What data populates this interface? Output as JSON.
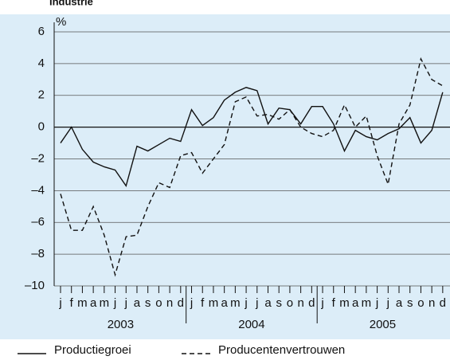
{
  "chart_data": {
    "type": "line",
    "title": "Industrie",
    "y_label": "%",
    "categories": [
      "j",
      "f",
      "m",
      "a",
      "m",
      "j",
      "j",
      "a",
      "s",
      "o",
      "n",
      "d",
      "j",
      "f",
      "m",
      "a",
      "m",
      "j",
      "j",
      "a",
      "s",
      "o",
      "n",
      "d",
      "j",
      "f",
      "m",
      "a",
      "m",
      "j",
      "j",
      "a",
      "s",
      "o",
      "n",
      "d"
    ],
    "year_groups": [
      "2003",
      "2004",
      "2005"
    ],
    "series": [
      {
        "name": "Productiegroei",
        "color": "#111111",
        "dash": false,
        "values": [
          -1.0,
          0.0,
          -1.4,
          -2.2,
          -2.5,
          -2.7,
          -3.7,
          -1.2,
          -1.5,
          -1.1,
          -0.7,
          -0.9,
          1.1,
          0.1,
          0.6,
          1.7,
          2.2,
          2.5,
          2.3,
          0.2,
          1.2,
          1.1,
          0.2,
          1.3,
          1.3,
          0.2,
          -1.5,
          -0.2,
          -0.6,
          -0.8,
          -0.4,
          -0.1,
          0.6,
          -1.0,
          -0.2,
          2.2
        ]
      },
      {
        "name": "Producentenvertrouwen",
        "color": "#111111",
        "dash": true,
        "values": [
          -4.2,
          -6.5,
          -6.5,
          -5.0,
          -6.8,
          -9.3,
          -6.9,
          -6.8,
          -5.0,
          -3.5,
          -3.8,
          -1.8,
          -1.6,
          -2.9,
          -2.0,
          -1.1,
          1.6,
          1.9,
          0.7,
          0.8,
          0.5,
          1.1,
          0.0,
          -0.4,
          -0.6,
          -0.2,
          1.4,
          0.0,
          0.7,
          -1.8,
          -3.6,
          0.2,
          1.4,
          4.3,
          3.0,
          2.6
        ]
      }
    ],
    "ylim": [
      -10,
      6
    ],
    "yticks": [
      {
        "value": -10,
        "label": "–10"
      },
      {
        "value": -8,
        "label": "–8"
      },
      {
        "value": -6,
        "label": "–6"
      },
      {
        "value": -4,
        "label": "–4"
      },
      {
        "value": -2,
        "label": "–2"
      },
      0,
      2,
      4,
      6
    ],
    "grid": true
  }
}
